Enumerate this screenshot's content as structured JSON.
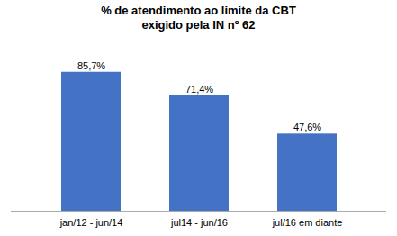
{
  "chart_data": {
    "type": "bar",
    "title": "% de atendimento ao limite da CBT\nexigido pela IN nº 62",
    "categories": [
      "jan/12 - jun/14",
      "jul14 - jun/16",
      "jul/16 em diante"
    ],
    "values": [
      85.7,
      71.4,
      47.6
    ],
    "value_labels": [
      "85,7%",
      "71,4%",
      "47,6%"
    ],
    "data_labels": true,
    "color": "#4472C4",
    "ylim": [
      0,
      100
    ],
    "grid": false,
    "tick_labels": "x"
  }
}
